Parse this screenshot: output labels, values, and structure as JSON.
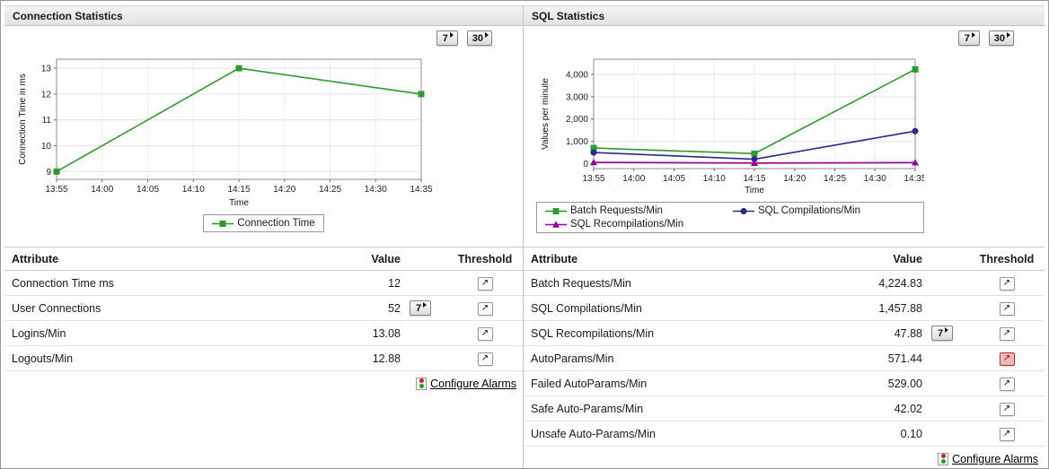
{
  "connection": {
    "title": "Connection Statistics",
    "period_buttons": [
      "7",
      "30"
    ],
    "chart_data": {
      "type": "line",
      "xlabel": "Time",
      "ylabel": "Connection Time in ms",
      "x": [
        "13:55",
        "14:00",
        "14:05",
        "14:10",
        "14:15",
        "14:20",
        "14:25",
        "14:30",
        "14:35"
      ],
      "yticks": [
        9,
        10,
        11,
        12,
        13
      ],
      "ytick_labels": [
        "9",
        "10",
        "11",
        "12",
        "13"
      ],
      "ylim": [
        8.7,
        13.35
      ],
      "grid": true,
      "legend_position": "bottom",
      "series": [
        {
          "name": "Connection Time",
          "color": "#2e9b2e",
          "marker": "square",
          "points": [
            [
              0,
              9
            ],
            [
              4,
              13
            ],
            [
              8,
              12
            ]
          ]
        }
      ]
    },
    "table": {
      "headers": [
        "Attribute",
        "Value",
        "Threshold"
      ],
      "rows": [
        {
          "attribute": "Connection Time ms",
          "value": "12",
          "period_button": null,
          "alert": false
        },
        {
          "attribute": "User Connections",
          "value": "52",
          "period_button": "7",
          "alert": false
        },
        {
          "attribute": "Logins/Min",
          "value": "13.08",
          "period_button": null,
          "alert": false
        },
        {
          "attribute": "Logouts/Min",
          "value": "12.88",
          "period_button": null,
          "alert": false
        }
      ]
    },
    "configure_alarms_label": "Configure Alarms"
  },
  "sql": {
    "title": "SQL Statistics",
    "period_buttons": [
      "7",
      "30"
    ],
    "chart_data": {
      "type": "line",
      "xlabel": "Time",
      "ylabel": "Values per minute",
      "x": [
        "13:55",
        "14:00",
        "14:05",
        "14:10",
        "14:15",
        "14:20",
        "14:25",
        "14:30",
        "14:35"
      ],
      "yticks": [
        0,
        1000,
        2000,
        3000,
        4000
      ],
      "ytick_labels": [
        "0",
        "1,000",
        "2,000",
        "3,000",
        "4,000"
      ],
      "ylim": [
        -220,
        4680
      ],
      "grid": true,
      "legend_position": "bottom",
      "series": [
        {
          "name": "Batch Requests/Min",
          "color": "#2e9b2e",
          "marker": "square",
          "points": [
            [
              0,
              700
            ],
            [
              4,
              450
            ],
            [
              8,
              4224.83
            ]
          ]
        },
        {
          "name": "SQL Compilations/Min",
          "color": "#28288f",
          "marker": "circle",
          "points": [
            [
              0,
              500
            ],
            [
              4,
              200
            ],
            [
              8,
              1457.88
            ]
          ]
        },
        {
          "name": "SQL Recompilations/Min",
          "color": "#990099",
          "marker": "triangle",
          "points": [
            [
              0,
              60
            ],
            [
              4,
              30
            ],
            [
              8,
              47.88
            ]
          ]
        }
      ]
    },
    "table": {
      "headers": [
        "Attribute",
        "Value",
        "Threshold"
      ],
      "rows": [
        {
          "attribute": "Batch Requests/Min",
          "value": "4,224.83",
          "period_button": null,
          "alert": false
        },
        {
          "attribute": "SQL Compilations/Min",
          "value": "1,457.88",
          "period_button": null,
          "alert": false
        },
        {
          "attribute": "SQL Recompilations/Min",
          "value": "47.88",
          "period_button": "7",
          "alert": false
        },
        {
          "attribute": "AutoParams/Min",
          "value": "571.44",
          "period_button": null,
          "alert": true
        },
        {
          "attribute": "Failed AutoParams/Min",
          "value": "529.00",
          "period_button": null,
          "alert": false
        },
        {
          "attribute": "Safe Auto-Params/Min",
          "value": "42.02",
          "period_button": null,
          "alert": false
        },
        {
          "attribute": "Unsafe Auto-Params/Min",
          "value": "0.10",
          "period_button": null,
          "alert": false
        }
      ]
    },
    "configure_alarms_label": "Configure Alarms"
  }
}
